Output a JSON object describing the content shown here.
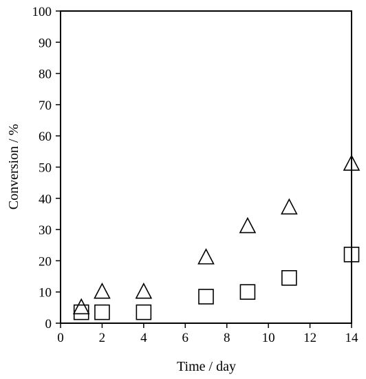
{
  "chart_data": {
    "type": "scatter",
    "xlabel": "Time / day",
    "ylabel": "Conversion / %",
    "xlim": [
      0,
      14
    ],
    "ylim": [
      0,
      100
    ],
    "xticks": [
      0,
      2,
      4,
      6,
      8,
      10,
      12,
      14
    ],
    "yticks": [
      0,
      10,
      20,
      30,
      40,
      50,
      60,
      70,
      80,
      90,
      100
    ],
    "grid": false,
    "legend": "none",
    "series": [
      {
        "marker": "triangle-open",
        "color": "#000000",
        "points": [
          {
            "x": 1,
            "y": 5
          },
          {
            "x": 2,
            "y": 10
          },
          {
            "x": 4,
            "y": 10
          },
          {
            "x": 7,
            "y": 21
          },
          {
            "x": 9,
            "y": 31
          },
          {
            "x": 11,
            "y": 37
          },
          {
            "x": 14,
            "y": 51
          }
        ]
      },
      {
        "marker": "square-open",
        "color": "#000000",
        "points": [
          {
            "x": 1,
            "y": 3.5
          },
          {
            "x": 2,
            "y": 3.5
          },
          {
            "x": 4,
            "y": 3.5
          },
          {
            "x": 7,
            "y": 8.5
          },
          {
            "x": 9,
            "y": 10
          },
          {
            "x": 11,
            "y": 14.5
          },
          {
            "x": 14,
            "y": 22
          }
        ]
      }
    ]
  }
}
